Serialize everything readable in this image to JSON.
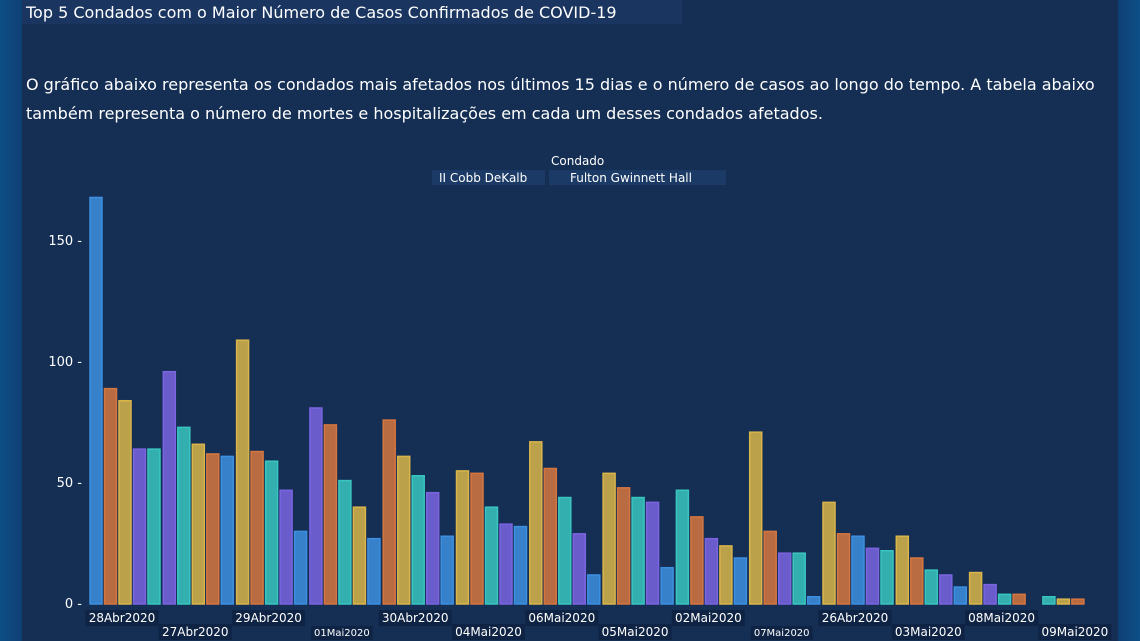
{
  "title": "Top 5 Condados com o Maior Número de Casos Confirmados de COVID-19",
  "description": "O gráfico abaixo representa os condados mais afetados nos últimos 15 dias e o número de casos ao longo do tempo. A tabela abaixo também representa o número de mortes e hospitalizações em cada um desses condados afetados.",
  "legend": {
    "title": "Condado",
    "group1": "II Cobb DeKalb",
    "group2": "Fulton Gwinnett Hall"
  },
  "colors": {
    "blue": "#3d8fe0",
    "orange": "#d6763f",
    "gold": "#d9b54a",
    "purple": "#7a64e0",
    "teal": "#3ac6c0"
  },
  "chart_data": {
    "type": "bar",
    "yticks": [
      0,
      50,
      100,
      150
    ],
    "ylim": [
      0,
      170
    ],
    "categories": [
      "28Abr2020",
      "27Abr2020",
      "29Abr2020",
      "01Mai2020",
      "30Abr2020",
      "04Mai2020",
      "06Mai2020",
      "05Mai2020",
      "02Mai2020",
      "07Mai2020",
      "26Abr2020",
      "03Mai2020",
      "08Mai2020",
      "09Mai2020"
    ],
    "groups": [
      [
        {
          "c": "blue",
          "v": 168
        },
        {
          "c": "orange",
          "v": 89
        },
        {
          "c": "gold",
          "v": 84
        },
        {
          "c": "purple",
          "v": 64
        },
        {
          "c": "teal",
          "v": 64
        }
      ],
      [
        {
          "c": "purple",
          "v": 96
        },
        {
          "c": "teal",
          "v": 73
        },
        {
          "c": "gold",
          "v": 66
        },
        {
          "c": "orange",
          "v": 62
        },
        {
          "c": "blue",
          "v": 61
        }
      ],
      [
        {
          "c": "gold",
          "v": 109
        },
        {
          "c": "orange",
          "v": 63
        },
        {
          "c": "teal",
          "v": 59
        },
        {
          "c": "purple",
          "v": 47
        },
        {
          "c": "blue",
          "v": 30
        }
      ],
      [
        {
          "c": "purple",
          "v": 81
        },
        {
          "c": "orange",
          "v": 74
        },
        {
          "c": "teal",
          "v": 51
        },
        {
          "c": "gold",
          "v": 40
        },
        {
          "c": "blue",
          "v": 27
        }
      ],
      [
        {
          "c": "orange",
          "v": 76
        },
        {
          "c": "gold",
          "v": 61
        },
        {
          "c": "teal",
          "v": 53
        },
        {
          "c": "purple",
          "v": 46
        },
        {
          "c": "blue",
          "v": 28
        }
      ],
      [
        {
          "c": "gold",
          "v": 55
        },
        {
          "c": "orange",
          "v": 54
        },
        {
          "c": "teal",
          "v": 40
        },
        {
          "c": "purple",
          "v": 33
        },
        {
          "c": "blue",
          "v": 32
        }
      ],
      [
        {
          "c": "gold",
          "v": 67
        },
        {
          "c": "orange",
          "v": 56
        },
        {
          "c": "teal",
          "v": 44
        },
        {
          "c": "purple",
          "v": 29
        },
        {
          "c": "blue",
          "v": 12
        }
      ],
      [
        {
          "c": "gold",
          "v": 54
        },
        {
          "c": "orange",
          "v": 48
        },
        {
          "c": "teal",
          "v": 44
        },
        {
          "c": "purple",
          "v": 42
        },
        {
          "c": "blue",
          "v": 15
        }
      ],
      [
        {
          "c": "teal",
          "v": 47
        },
        {
          "c": "orange",
          "v": 36
        },
        {
          "c": "purple",
          "v": 27
        },
        {
          "c": "gold",
          "v": 24
        },
        {
          "c": "blue",
          "v": 19
        }
      ],
      [
        {
          "c": "gold",
          "v": 71
        },
        {
          "c": "orange",
          "v": 30
        },
        {
          "c": "purple",
          "v": 21
        },
        {
          "c": "teal",
          "v": 21
        },
        {
          "c": "blue",
          "v": 3
        }
      ],
      [
        {
          "c": "gold",
          "v": 42
        },
        {
          "c": "orange",
          "v": 29
        },
        {
          "c": "blue",
          "v": 28
        },
        {
          "c": "purple",
          "v": 23
        },
        {
          "c": "teal",
          "v": 22
        }
      ],
      [
        {
          "c": "gold",
          "v": 28
        },
        {
          "c": "orange",
          "v": 19
        },
        {
          "c": "teal",
          "v": 14
        },
        {
          "c": "purple",
          "v": 12
        },
        {
          "c": "blue",
          "v": 7
        }
      ],
      [
        {
          "c": "gold",
          "v": 13
        },
        {
          "c": "purple",
          "v": 8
        },
        {
          "c": "teal",
          "v": 4
        },
        {
          "c": "orange",
          "v": 4
        }
      ],
      [
        {
          "c": "teal",
          "v": 3
        },
        {
          "c": "gold",
          "v": 2
        },
        {
          "c": "orange",
          "v": 2
        }
      ]
    ]
  }
}
